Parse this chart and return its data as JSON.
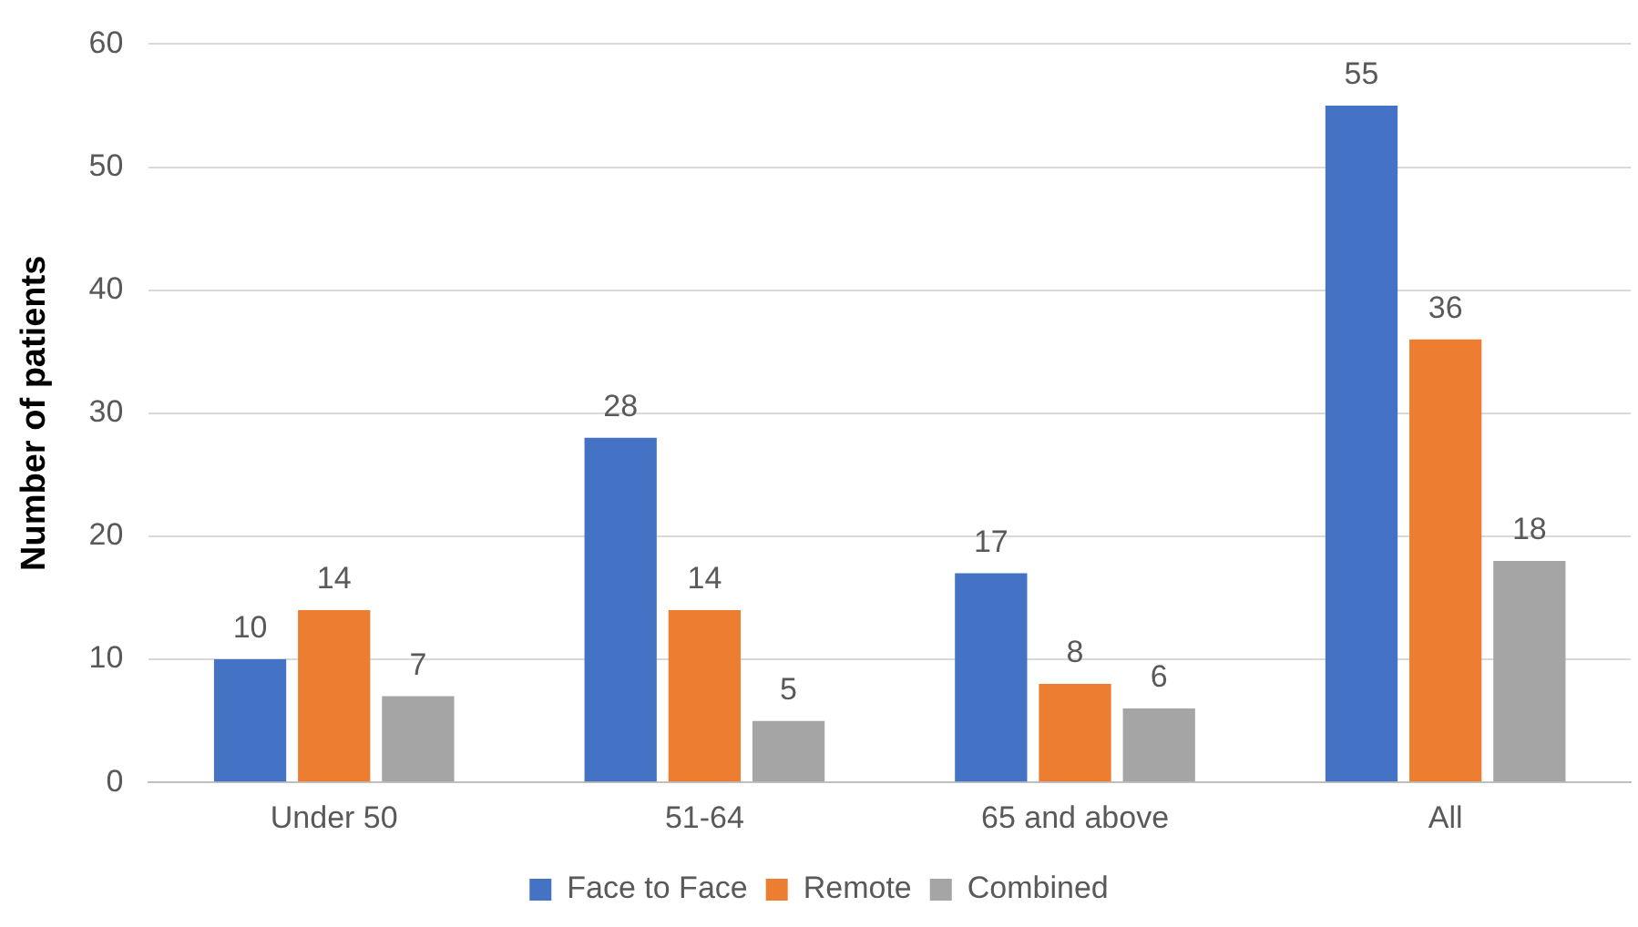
{
  "chart_data": {
    "type": "bar",
    "ylabel": "Number of patients",
    "categories": [
      "Under 50",
      "51-64",
      "65 and above",
      "All"
    ],
    "series": [
      {
        "name": "Face to Face",
        "color": "#4472c4",
        "values": [
          10,
          28,
          17,
          55
        ]
      },
      {
        "name": "Remote",
        "color": "#ed7d31",
        "values": [
          14,
          14,
          8,
          36
        ]
      },
      {
        "name": "Combined",
        "color": "#a5a5a5",
        "values": [
          7,
          5,
          6,
          18
        ]
      }
    ],
    "ylim": [
      0,
      60
    ],
    "yticks": [
      0,
      10,
      20,
      30,
      40,
      50,
      60
    ],
    "grid": "y",
    "legend": "bottom",
    "data_labels": true
  }
}
